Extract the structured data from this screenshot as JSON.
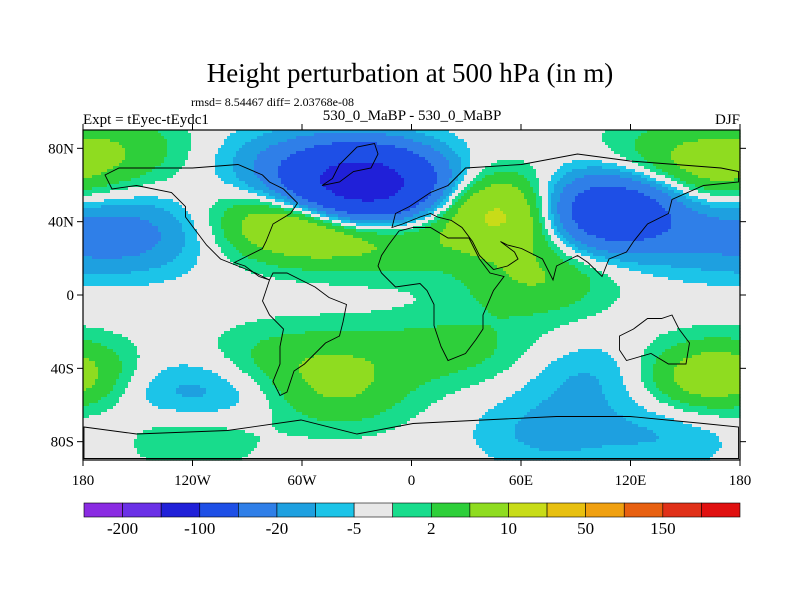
{
  "chart_data": {
    "type": "heatmap",
    "title": "Height perturbation at 500 hPa (in m)",
    "stats_text": "rmsd= 8.54467 diff= 2.03768e-08",
    "left_label": "Expt = tEyec-tEydc1",
    "center_label": "530_0_MaBP - 530_0_MaBP",
    "right_label": "DJF",
    "x_ticks": [
      "180",
      "120W",
      "60W",
      "0",
      "60E",
      "120E",
      "180"
    ],
    "y_ticks": [
      "80N",
      "40N",
      "0",
      "40S",
      "80S"
    ],
    "xlim": [
      -180,
      180
    ],
    "ylim": [
      -90,
      90
    ],
    "colorbar": {
      "labels": [
        "-200",
        "-100",
        "-20",
        "-5",
        "2",
        "10",
        "50",
        "150"
      ],
      "colors": [
        "#8a2be2",
        "#6a30e6",
        "#2020d8",
        "#1e4fe6",
        "#2f7fe8",
        "#1ea0e0",
        "#1cc4e8",
        "#e8e8e8",
        "#18dc8c",
        "#2ecf3a",
        "#8fdc20",
        "#c8dc18",
        "#e8c010",
        "#f0a010",
        "#e86010",
        "#e03018",
        "#e01010"
      ]
    },
    "blobs": [
      {
        "lon": -20,
        "lat": 60,
        "value": -25
      },
      {
        "lon": -30,
        "lat": 60,
        "value": -50
      },
      {
        "lon": -70,
        "lat": 72,
        "value": -7
      },
      {
        "lon": -150,
        "lat": 30,
        "value": -5
      },
      {
        "lon": -160,
        "lat": 35,
        "value": -8
      },
      {
        "lon": -70,
        "lat": 40,
        "value": 12
      },
      {
        "lon": -50,
        "lat": 40,
        "value": 14
      },
      {
        "lon": -10,
        "lat": 30,
        "value": 8
      },
      {
        "lon": 45,
        "lat": 50,
        "value": 13
      },
      {
        "lon": 60,
        "lat": 40,
        "value": 16
      },
      {
        "lon": 110,
        "lat": 45,
        "value": -12
      },
      {
        "lon": 105,
        "lat": 45,
        "value": -30
      },
      {
        "lon": 160,
        "lat": 65,
        "value": 10
      },
      {
        "lon": 160,
        "lat": 30,
        "value": -6
      },
      {
        "lon": -160,
        "lat": 80,
        "value": 8
      },
      {
        "lon": 140,
        "lat": 80,
        "value": 5
      },
      {
        "lon": 75,
        "lat": 10,
        "value": 6
      },
      {
        "lon": 60,
        "lat": 5,
        "value": 4
      },
      {
        "lon": -80,
        "lat": -35,
        "value": 5
      },
      {
        "lon": -40,
        "lat": -35,
        "value": 5
      },
      {
        "lon": 5,
        "lat": -30,
        "value": 4
      },
      {
        "lon": -155,
        "lat": -50,
        "value": -6
      },
      {
        "lon": -175,
        "lat": -45,
        "value": 8
      },
      {
        "lon": -110,
        "lat": -55,
        "value": -7
      },
      {
        "lon": -40,
        "lat": -55,
        "value": 8
      },
      {
        "lon": -120,
        "lat": -75,
        "value": 6
      },
      {
        "lon": 100,
        "lat": -45,
        "value": -6
      },
      {
        "lon": 40,
        "lat": -30,
        "value": 4
      },
      {
        "lon": 160,
        "lat": -45,
        "value": 12
      },
      {
        "lon": 75,
        "lat": -75,
        "value": -6
      },
      {
        "lon": 140,
        "lat": -75,
        "value": -5
      }
    ],
    "field_note": "contour field"
  }
}
